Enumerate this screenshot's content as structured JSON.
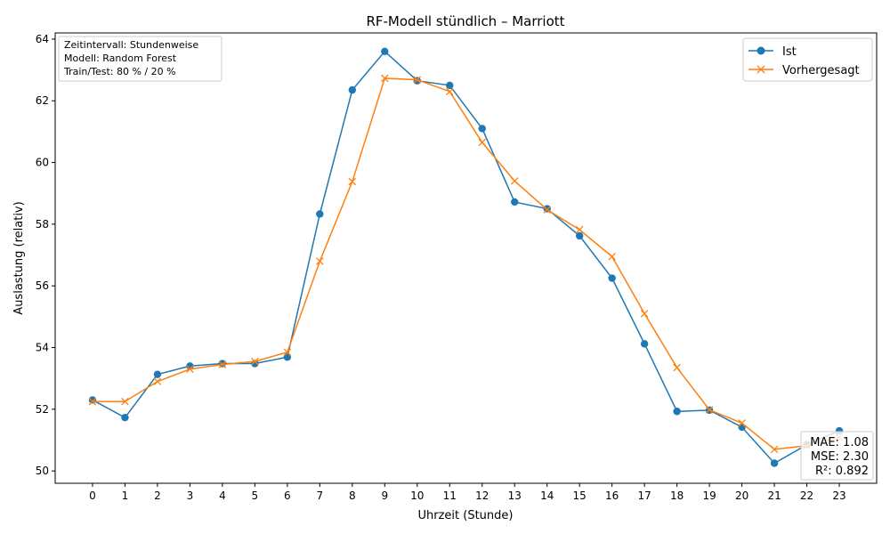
{
  "chart_data": {
    "type": "line",
    "title": "RF-Modell stündlich – Marriott",
    "xlabel": "Uhrzeit (Stunde)",
    "ylabel": "Auslastung (relativ)",
    "x": [
      0,
      1,
      2,
      3,
      4,
      5,
      6,
      7,
      8,
      9,
      10,
      11,
      12,
      13,
      14,
      15,
      16,
      17,
      18,
      19,
      20,
      21,
      22,
      23
    ],
    "xlim": [
      -1.15,
      24.15
    ],
    "ylim": [
      49.6,
      64.2
    ],
    "yticks": [
      50,
      52,
      54,
      56,
      58,
      60,
      62,
      64
    ],
    "grid": false,
    "legend_position": "top-right",
    "series": [
      {
        "name": "Ist",
        "color": "#1f77b4",
        "marker": "circle",
        "values": [
          52.3,
          51.73,
          53.13,
          53.4,
          53.48,
          53.48,
          53.69,
          58.33,
          62.35,
          63.6,
          62.65,
          62.5,
          61.1,
          58.72,
          58.5,
          57.62,
          56.25,
          54.12,
          51.93,
          51.97,
          51.42,
          50.25,
          50.85,
          51.3
        ]
      },
      {
        "name": "Vorhergesagt",
        "color": "#ff7f0e",
        "marker": "x",
        "values": [
          52.25,
          52.25,
          52.9,
          53.3,
          53.45,
          53.55,
          53.85,
          56.8,
          59.38,
          62.73,
          62.68,
          62.3,
          60.65,
          59.4,
          58.47,
          57.82,
          56.95,
          55.1,
          53.35,
          51.98,
          51.55,
          50.7,
          50.82,
          51.1
        ]
      }
    ],
    "info_box": [
      "Zeitintervall: Stundenweise",
      "Modell: Random Forest",
      "Train/Test: 80 % / 20 %"
    ],
    "metrics_box": [
      "MAE: 1.08",
      "MSE: 2.30",
      "R²: 0.892"
    ]
  }
}
